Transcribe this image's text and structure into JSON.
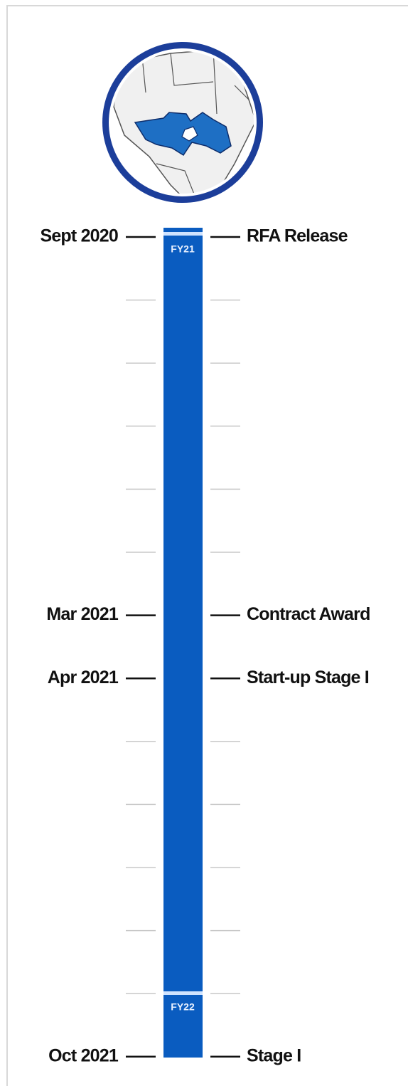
{
  "timeline": {
    "fiscal_years": [
      "FY21",
      "FY22"
    ],
    "milestones": [
      {
        "date": "Sept 2020",
        "event": "RFA Release"
      },
      {
        "date": "Mar 2021",
        "event": "Contract Award"
      },
      {
        "date": "Apr 2021",
        "event": "Start-up Stage I"
      },
      {
        "date": "Oct 2021",
        "event": "Stage I"
      }
    ]
  }
}
